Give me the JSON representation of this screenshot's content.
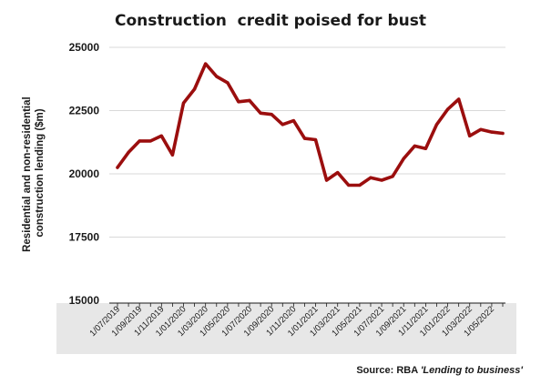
{
  "colors": {
    "line": "#9b0e0e",
    "grid": "#d9d9d9",
    "xaxis_band": "#e7e7e7",
    "text": "#1a1a1a"
  },
  "source": {
    "prefix": "Source: RBA",
    "title": "'Lending to business'"
  },
  "chart_data": {
    "type": "line",
    "title": "Construction  credit poised for bust",
    "ylabel": "Residential and non-residential construction lending ($m)",
    "ylabel_lines": [
      "Residential and non-residential",
      "construction lending ($m)"
    ],
    "xlabel": "",
    "ylim": [
      15000,
      25000
    ],
    "yticks": [
      15000,
      17500,
      20000,
      22500,
      25000
    ],
    "ytick_labels": [
      "15000",
      "17500",
      "20000",
      "22500",
      "25000"
    ],
    "grid": "horizontal",
    "x_tick_labels": [
      "1/07/2019",
      "1/09/2019",
      "1/11/2019",
      "1/01/2020",
      "1/03/2020",
      "1/05/2020",
      "1/07/2020",
      "1/09/2020",
      "1/11/2020",
      "1/01/2021",
      "1/03/2021",
      "1/05/2021",
      "1/07/2021",
      "1/09/2021",
      "1/11/2021",
      "1/01/2022",
      "1/03/2022",
      "1/05/2022"
    ],
    "x": [
      "2019-07",
      "2019-08",
      "2019-09",
      "2019-10",
      "2019-11",
      "2019-12",
      "2020-01",
      "2020-02",
      "2020-03",
      "2020-04",
      "2020-05",
      "2020-06",
      "2020-07",
      "2020-08",
      "2020-09",
      "2020-10",
      "2020-11",
      "2020-12",
      "2021-01",
      "2021-02",
      "2021-03",
      "2021-04",
      "2021-05",
      "2021-06",
      "2021-07",
      "2021-08",
      "2021-09",
      "2021-10",
      "2021-11",
      "2021-12",
      "2022-01",
      "2022-02",
      "2022-03",
      "2022-04",
      "2022-05",
      "2022-06"
    ],
    "series": [
      {
        "values": [
          20250,
          20850,
          21300,
          21300,
          21500,
          20750,
          22800,
          23350,
          24350,
          23850,
          23600,
          22850,
          22900,
          22400,
          22350,
          21950,
          22100,
          21400,
          21350,
          19750,
          20050,
          19550,
          19550,
          19850,
          19750,
          19900,
          20600,
          21100,
          21000,
          21950,
          22550,
          22950,
          21500,
          21750,
          21650,
          21600
        ]
      }
    ]
  }
}
